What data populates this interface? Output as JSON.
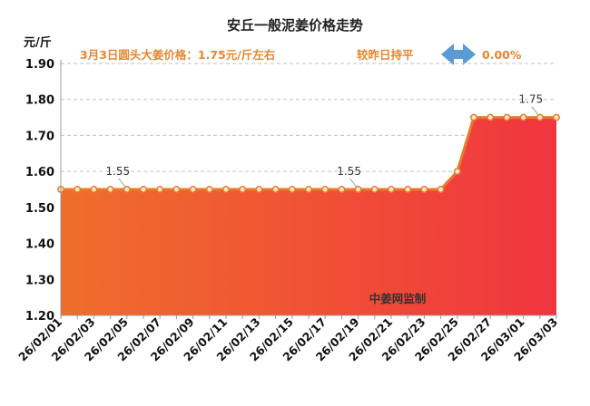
{
  "chart_data": {
    "type": "area",
    "title": "安丘一般泥姜价格走势",
    "subtitle": "3月3日圆头大姜价格：1.75元/斤左右",
    "change_label": "较昨日持平",
    "change_value": "0.00%",
    "ylabel": "元/斤",
    "xlabel": "",
    "ylim": [
      1.2,
      1.9
    ],
    "yticks": [
      "1.20",
      "1.30",
      "1.40",
      "1.50",
      "1.60",
      "1.70",
      "1.80",
      "1.90"
    ],
    "grid": true,
    "x": [
      "26/02/01",
      "26/02/02",
      "26/02/03",
      "26/02/04",
      "26/02/05",
      "26/02/06",
      "26/02/07",
      "26/02/08",
      "26/02/09",
      "26/02/10",
      "26/02/11",
      "26/02/12",
      "26/02/13",
      "26/02/14",
      "26/02/15",
      "26/02/16",
      "26/02/17",
      "26/02/18",
      "26/02/19",
      "26/02/20",
      "26/02/21",
      "26/02/22",
      "26/02/23",
      "26/02/24",
      "26/02/25",
      "26/02/26",
      "26/02/27",
      "26/02/28",
      "26/03/01",
      "26/03/02",
      "26/03/03"
    ],
    "xticks": [
      "26/02/01",
      "26/02/03",
      "26/02/05",
      "26/02/07",
      "26/02/09",
      "26/02/11",
      "26/02/13",
      "26/02/15",
      "26/02/17",
      "26/02/19",
      "26/02/21",
      "26/02/23",
      "26/02/25",
      "26/02/27",
      "26/03/01",
      "26/03/03"
    ],
    "series": [
      {
        "values": [
          1.55,
          1.55,
          1.55,
          1.55,
          1.55,
          1.55,
          1.55,
          1.55,
          1.55,
          1.55,
          1.55,
          1.55,
          1.55,
          1.55,
          1.55,
          1.55,
          1.55,
          1.55,
          1.55,
          1.55,
          1.55,
          1.55,
          1.55,
          1.55,
          1.6,
          1.75,
          1.75,
          1.75,
          1.75,
          1.75,
          1.75
        ]
      }
    ],
    "data_labels": [
      {
        "index": 4,
        "text": "1.55"
      },
      {
        "index": 18,
        "text": "1.55"
      },
      {
        "index": 29,
        "text": "1.75"
      }
    ],
    "watermark": "中姜网监制",
    "colors": {
      "line": "#e87a2a",
      "marker_fill": "#f7e7c8",
      "area_left": "#ef6e2b",
      "area_right": "#f0353f",
      "subtitle": "#e6862f",
      "change_value": "#e6862f",
      "arrow": "#5b9bd5",
      "grid": "#b7c6cc"
    },
    "icon": "double-arrow-icon"
  }
}
